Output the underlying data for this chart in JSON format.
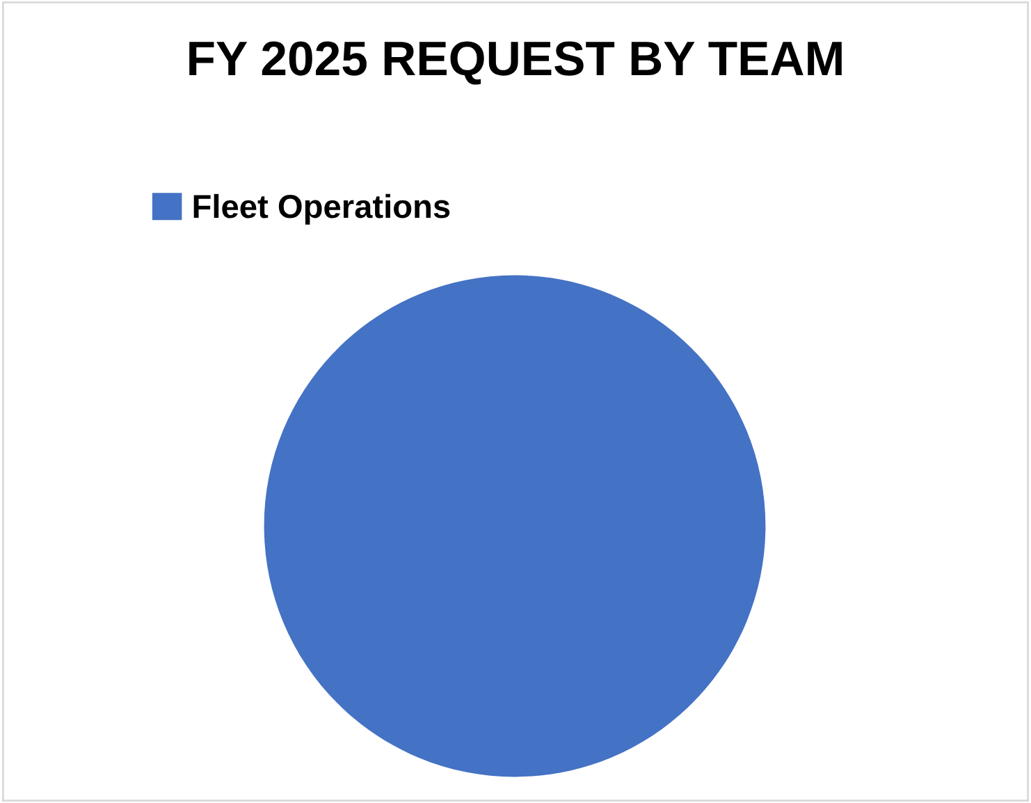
{
  "chart_data": {
    "type": "pie",
    "title": "FY 2025 REQUEST BY TEAM",
    "categories": [
      "Fleet Operations"
    ],
    "values": [
      100
    ],
    "colors": [
      "#4472c4"
    ],
    "legend": "top left"
  }
}
